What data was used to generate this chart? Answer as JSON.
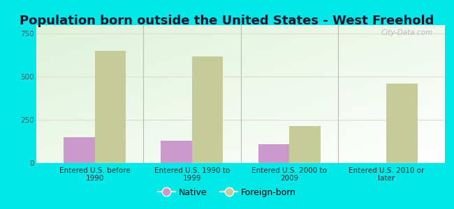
{
  "title": "Population born outside the United States - West Freehold",
  "categories": [
    "Entered U.S. before\n1990",
    "Entered U.S. 1990 to\n1999",
    "Entered U.S. 2000 to\n2009",
    "Entered U.S. 2010 or\nlater"
  ],
  "native_values": [
    150,
    130,
    110,
    0
  ],
  "foreign_values": [
    650,
    620,
    215,
    460
  ],
  "native_color": "#cc99cc",
  "foreign_color": "#c5cc99",
  "background_color": "#00e8e8",
  "plot_bg_color": "#eef5e8",
  "ylim": [
    0,
    800
  ],
  "yticks": [
    0,
    250,
    500,
    750
  ],
  "bar_width": 0.32,
  "legend_native": "Native",
  "legend_foreign": "Foreign-born",
  "title_fontsize": 13,
  "tick_fontsize": 7.5,
  "legend_fontsize": 9,
  "watermark": "City-Data.com",
  "grid_color": "#ddddcc",
  "separator_color": "#bbbbaa"
}
